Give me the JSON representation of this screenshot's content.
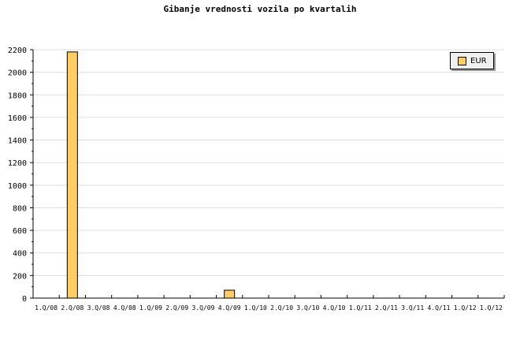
{
  "chart_data": {
    "type": "bar",
    "title": "Gibanje vrednosti vozila po kvartalih",
    "xlabel": "",
    "ylabel": "",
    "categories": [
      "1.Q/08",
      "2.Q/08",
      "3.Q/08",
      "4.Q/08",
      "1.Q/09",
      "2.Q/09",
      "3.Q/09",
      "4.Q/09",
      "1.Q/10",
      "2.Q/10",
      "3.Q/10",
      "4.Q/10",
      "1.Q/11",
      "2.Q/11",
      "3.Q/11",
      "4.Q/11",
      "1.Q/12",
      "1.Q/12"
    ],
    "series": [
      {
        "name": "EUR",
        "color": "#ffcc66",
        "values": [
          0,
          2180,
          0,
          0,
          0,
          0,
          0,
          70,
          0,
          0,
          0,
          0,
          0,
          0,
          0,
          0,
          0,
          0
        ]
      }
    ],
    "ylim": [
      0,
      2200
    ],
    "yticks": [
      0,
      200,
      400,
      600,
      800,
      1000,
      1200,
      1400,
      1600,
      1800,
      2000,
      2200
    ],
    "grid": true,
    "legend_position": "top-right"
  }
}
